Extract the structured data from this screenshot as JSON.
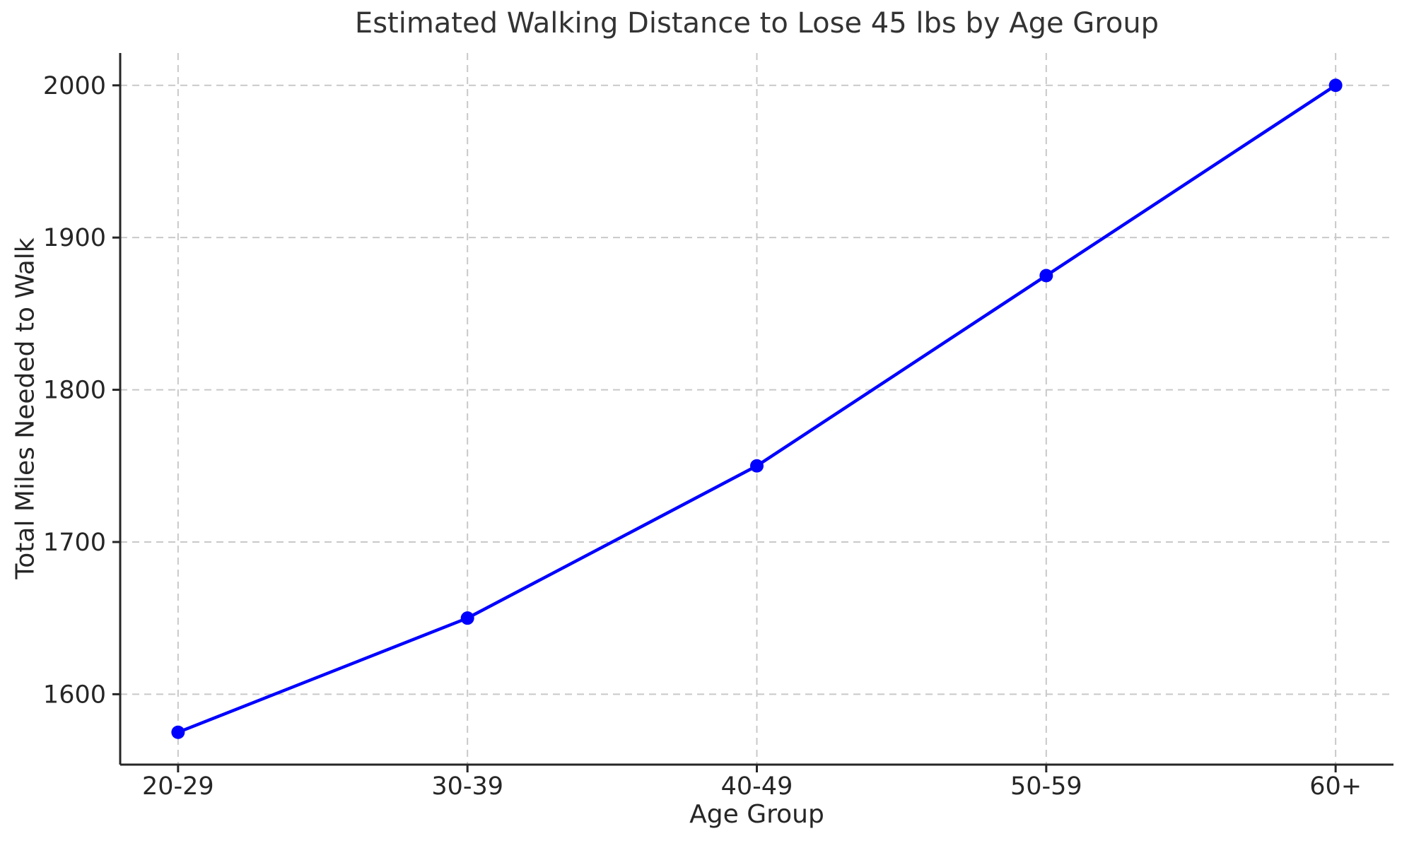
{
  "chart_data": {
    "type": "line",
    "title": "Estimated Walking Distance to Lose 45 lbs by Age Group",
    "xlabel": "Age Group",
    "ylabel": "Total Miles Needed to Walk",
    "categories": [
      "20-29",
      "30-39",
      "40-49",
      "50-59",
      "60+"
    ],
    "series": [
      {
        "name": "Total Miles Needed to Walk",
        "values": [
          1575,
          1650,
          1750,
          1875,
          2000
        ]
      }
    ],
    "y_ticks": [
      1600,
      1700,
      1800,
      1900,
      2000
    ],
    "ylim": [
      1553.75,
      2021.25
    ],
    "xlim": [
      -0.2,
      4.2
    ],
    "grid": "both",
    "grid_style": "dashed",
    "legend_position": "none",
    "colors": {
      "line": "#0000ff",
      "marker": "#0000ff",
      "grid": "#c9c9c9",
      "spine": "#262626",
      "tick": "#262626",
      "tick_label": "#262626",
      "title_text": "#333333",
      "background": "#ffffff"
    }
  }
}
